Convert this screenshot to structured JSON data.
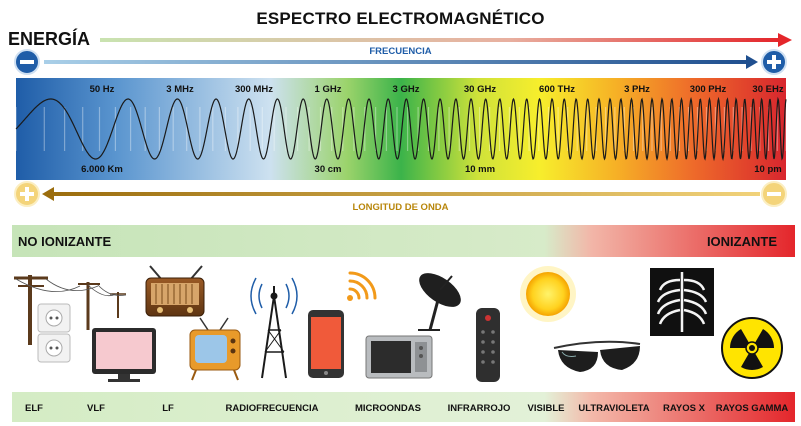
{
  "title": "ESPECTRO ELECTROMAGNÉTICO",
  "energy_label": "ENERGÍA",
  "frequency": {
    "label": "FRECUENCIA",
    "ticks": [
      "50 Hz",
      "3 MHz",
      "300 MHz",
      "1 GHz",
      "3 GHz",
      "30 GHz",
      "600 THz",
      "3 PHz",
      "300 PHz",
      "30 EHz"
    ]
  },
  "wavelength": {
    "label": "LONGITUD DE ONDA",
    "ticks": [
      "6.000 Km",
      "30 cm",
      "10 mm",
      "10 pm"
    ]
  },
  "ionization": {
    "non_ionizing": "NO IONIZANTE",
    "ionizing": "IONIZANTE"
  },
  "categories": [
    "ELF",
    "VLF",
    "LF",
    "RADIOFRECUENCIA",
    "MICROONDAS",
    "INFRARROJO",
    "VISIBLE",
    "ULTRAVIOLETA",
    "RAYOS X",
    "RAYOS GAMMA"
  ],
  "colors": {
    "frequency_arrow": "#1f4f8f",
    "wavelength_arrow": "#b8860b",
    "ionizing": "#e8302a",
    "non_ionizing": "#bfe0b0"
  }
}
